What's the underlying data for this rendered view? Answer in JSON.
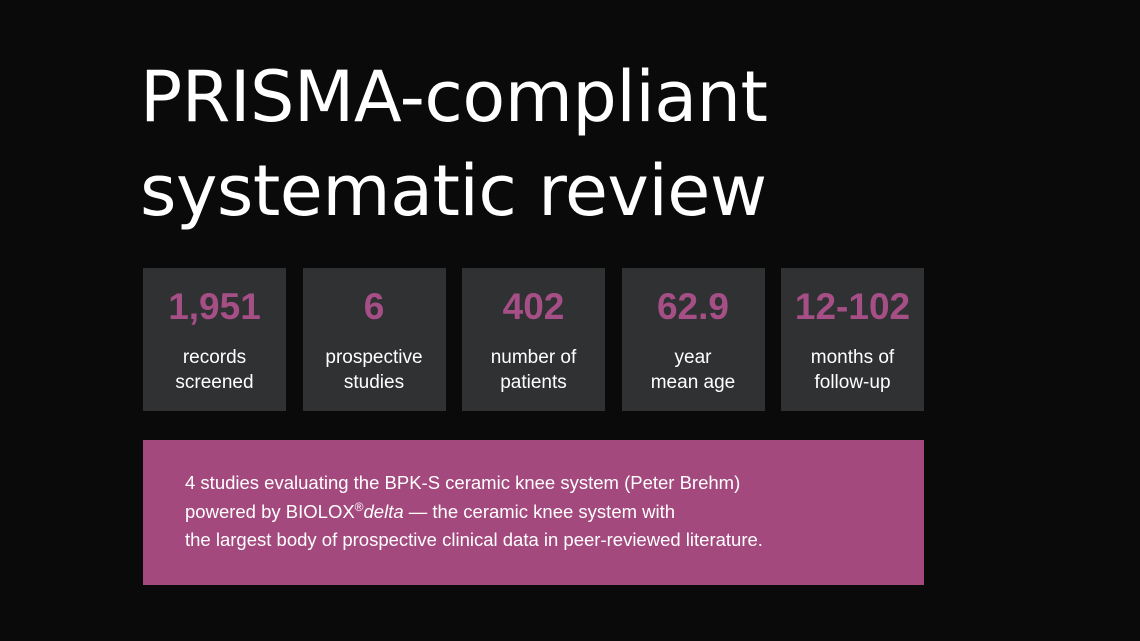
{
  "title": {
    "line1": "PRISMA-compliant",
    "line2": "systematic review"
  },
  "stats": [
    {
      "value": "1,951",
      "label_line1": "records",
      "label_line2": "screened"
    },
    {
      "value": "6",
      "label_line1": "prospective",
      "label_line2": "studies"
    },
    {
      "value": "402",
      "label_line1": "number of",
      "label_line2": "patients"
    },
    {
      "value": "62.9",
      "label_line1": "year",
      "label_line2": "mean age"
    },
    {
      "value": "12-102",
      "label_line1": "months of",
      "label_line2": "follow-up"
    }
  ],
  "callout": {
    "line1": "4 studies evaluating the BPK-S ceramic knee system (Peter Brehm)",
    "line2_prefix": "powered by BIOLOX",
    "line2_registered": "®",
    "line2_italic": "delta",
    "line2_suffix": " — the ceramic knee system with",
    "line3": "the largest body of prospective clinical data in peer-reviewed literature."
  },
  "colors": {
    "background": "#0a0a0a",
    "tile": "#2f3133",
    "accent": "#a64f86",
    "callout_bg": "#a4497e",
    "text": "#ffffff"
  }
}
